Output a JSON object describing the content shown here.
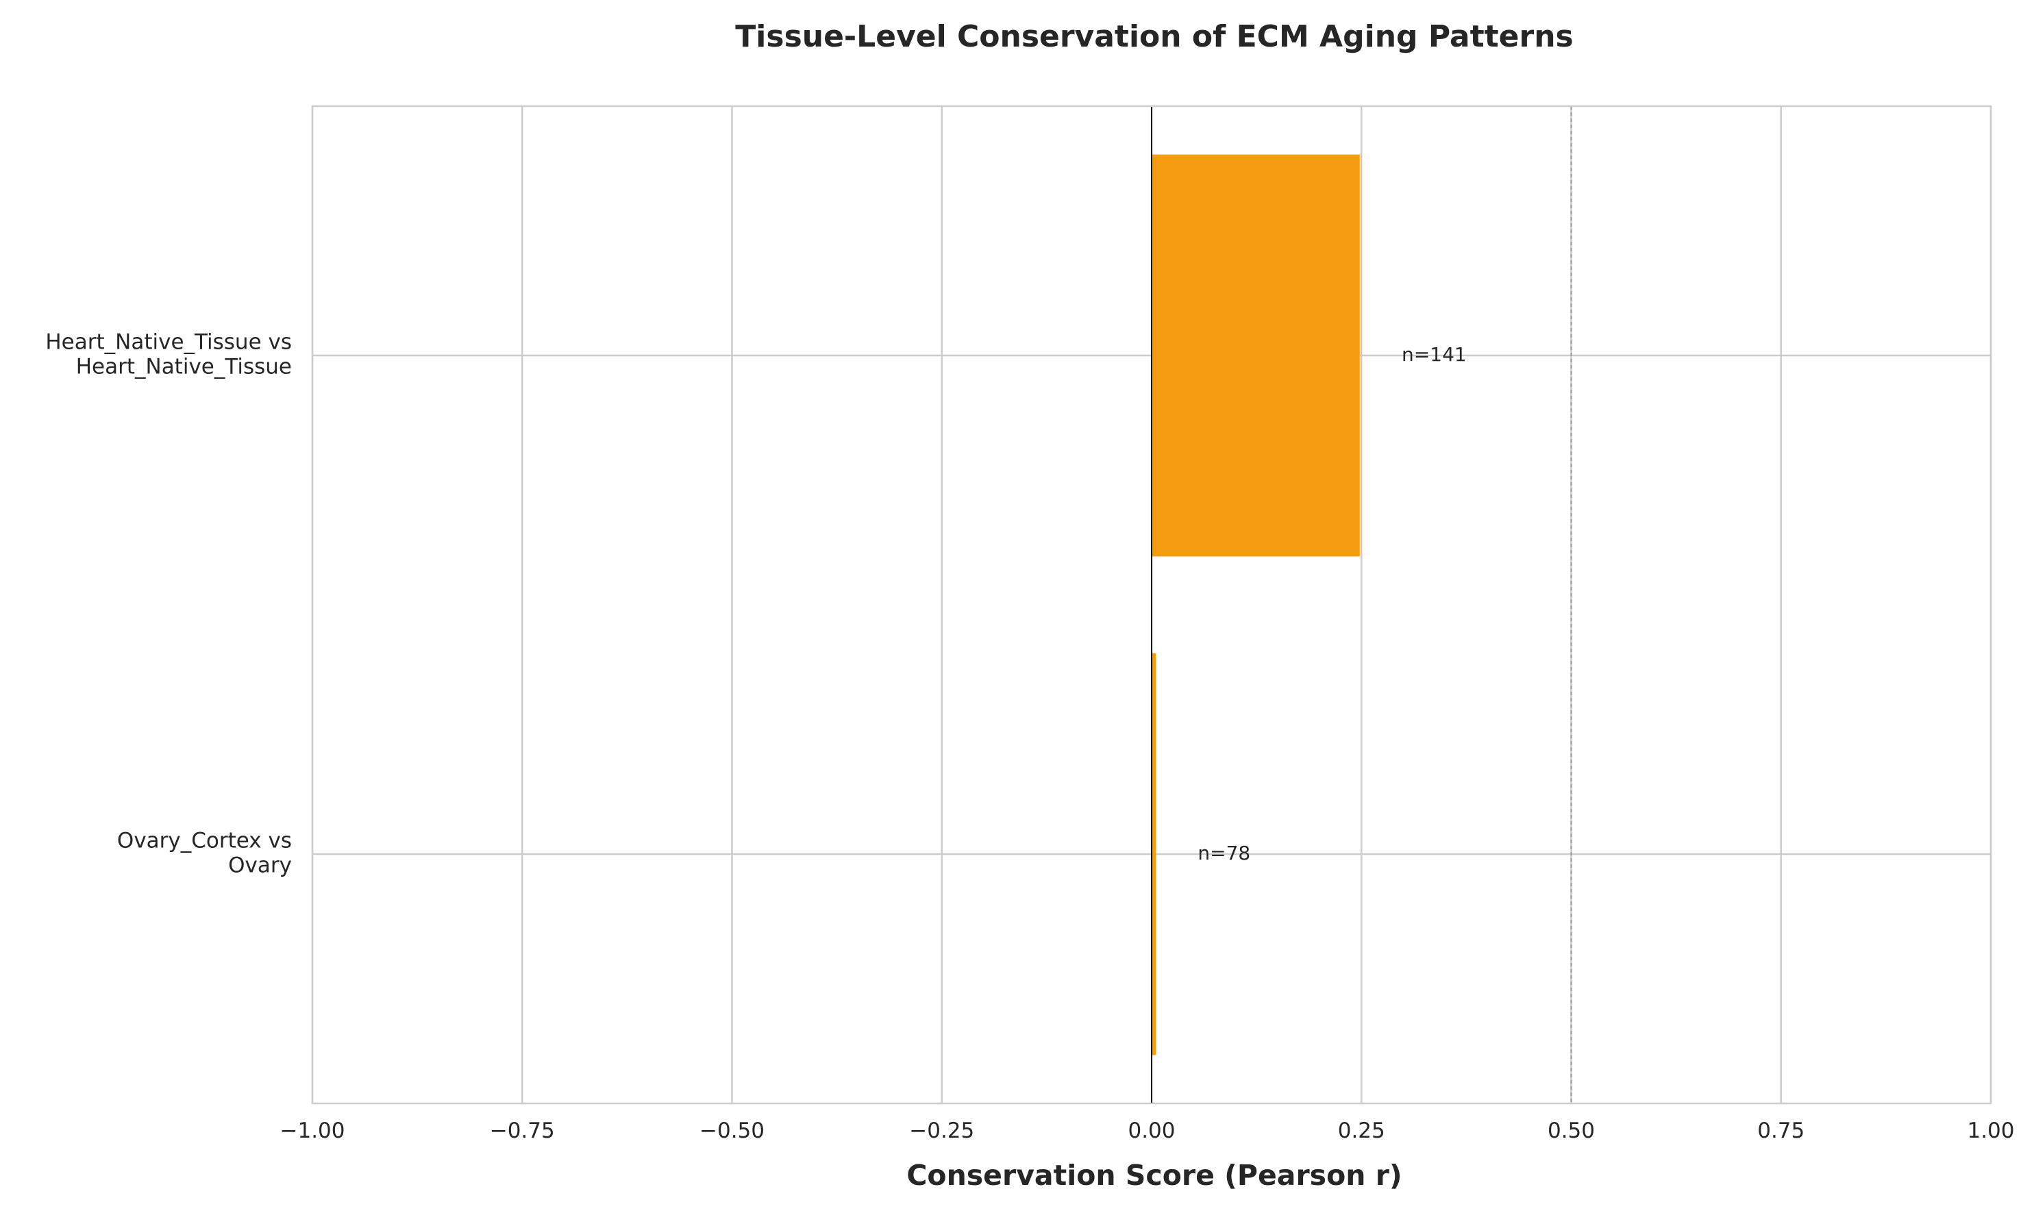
{
  "chart_data": {
    "type": "bar",
    "orientation": "horizontal",
    "title": "Tissue-Level Conservation of ECM Aging Patterns",
    "xlabel": "Conservation Score (Pearson r)",
    "ylabel": "",
    "xlim": [
      -1.0,
      1.0
    ],
    "xticks": [
      -1.0,
      -0.75,
      -0.5,
      -0.25,
      0.0,
      0.25,
      0.5,
      0.75,
      1.0
    ],
    "xtick_labels": [
      "−1.00",
      "−0.75",
      "−0.50",
      "−0.25",
      "0.00",
      "0.25",
      "0.50",
      "0.75",
      "1.00"
    ],
    "categories": [
      [
        "Heart_Native_Tissue vs",
        "Heart_Native_Tissue"
      ],
      [
        "Ovary_Cortex vs",
        "Ovary"
      ]
    ],
    "values": [
      0.248,
      0.005
    ],
    "annotations": [
      "n=141",
      "n=78"
    ],
    "bar_color": "#f39c12",
    "reference_lines": [
      0.0,
      0.5
    ],
    "grid": true
  }
}
